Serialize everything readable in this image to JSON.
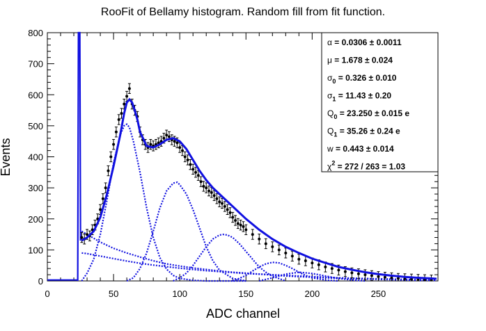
{
  "chart_data": {
    "type": "line",
    "title": "RooFit of Bellamy histogram. Random fill from fit function.",
    "xlabel": "ADC channel",
    "ylabel": "Events",
    "xlim": [
      0,
      295
    ],
    "ylim": [
      0,
      800
    ],
    "x_ticks": [
      0,
      50,
      100,
      150,
      200,
      250
    ],
    "y_ticks": [
      0,
      100,
      200,
      300,
      400,
      500,
      600,
      700,
      800
    ],
    "grid": false,
    "colors": {
      "fit": "#1010e0",
      "data": "#000000",
      "frame": "#000000"
    },
    "stats_box": {
      "placement": "top-right",
      "lines": [
        {
          "symbol": "α",
          "sub": "",
          "rest": " =  0.0306 ± 0.0011"
        },
        {
          "symbol": "μ",
          "sub": "",
          "rest": " =  1.678 ± 0.024"
        },
        {
          "symbol": "σ",
          "sub": "0",
          "rest": " =  0.326 ± 0.010"
        },
        {
          "symbol": "σ",
          "sub": "1",
          "rest": " =  11.43 ± 0.20"
        },
        {
          "symbol": "Q",
          "sub": "0",
          "rest": " =  23.250 ± 0.015 e"
        },
        {
          "symbol": "Q",
          "sub": "1",
          "rest": " =  35.26 ± 0.24 e"
        },
        {
          "symbol": "w",
          "sub": "",
          "rest": " =  0.443 ± 0.014"
        },
        {
          "symbol": "χ",
          "sup": "2",
          "rest": " =  272 / 263 = 1.03"
        }
      ]
    },
    "pedestal_spike": {
      "x": 24,
      "y_max": 800
    },
    "series": [
      {
        "kind": "data_points",
        "x": [
          26,
          28,
          30,
          32,
          34,
          36,
          38,
          40,
          42,
          44,
          46,
          48,
          50,
          52,
          54,
          56,
          58,
          60,
          62,
          64,
          66,
          68,
          70,
          72,
          74,
          76,
          78,
          80,
          82,
          84,
          86,
          88,
          90,
          92,
          94,
          96,
          98,
          100,
          102,
          104,
          106,
          108,
          110,
          112,
          114,
          116,
          118,
          120,
          122,
          124,
          126,
          128,
          130,
          132,
          134,
          136,
          138,
          140,
          142,
          144,
          146,
          148,
          150,
          155,
          160,
          165,
          170,
          175,
          180,
          185,
          190,
          195,
          200,
          205,
          210,
          215,
          220,
          225,
          230,
          235,
          240,
          245,
          250,
          255,
          260,
          265,
          270,
          275,
          280,
          285,
          290
        ],
        "y": [
          140,
          135,
          150,
          145,
          165,
          180,
          200,
          230,
          265,
          300,
          355,
          400,
          440,
          480,
          520,
          540,
          570,
          595,
          620,
          570,
          550,
          530,
          480,
          455,
          440,
          430,
          440,
          435,
          440,
          445,
          450,
          460,
          470,
          465,
          455,
          450,
          445,
          430,
          420,
          400,
          390,
          375,
          360,
          350,
          340,
          320,
          305,
          300,
          290,
          285,
          275,
          265,
          255,
          250,
          240,
          230,
          220,
          205,
          195,
          185,
          180,
          175,
          165,
          150,
          135,
          120,
          110,
          100,
          90,
          80,
          70,
          65,
          58,
          52,
          45,
          40,
          35,
          30,
          26,
          23,
          20,
          17,
          14,
          12,
          10,
          8,
          7,
          6,
          5,
          4,
          3
        ],
        "error": 16
      },
      {
        "kind": "total_fit",
        "x": [
          26,
          30,
          35,
          40,
          45,
          50,
          55,
          58,
          60,
          62,
          64,
          66,
          68,
          70,
          75,
          80,
          85,
          90,
          95,
          100,
          105,
          110,
          115,
          120,
          125,
          130,
          135,
          140,
          145,
          150,
          160,
          170,
          180,
          190,
          200,
          210,
          220,
          230,
          240,
          250,
          260,
          270,
          280,
          290,
          294
        ],
        "y": [
          130,
          140,
          160,
          205,
          280,
          370,
          470,
          540,
          575,
          585,
          575,
          550,
          520,
          480,
          435,
          430,
          440,
          455,
          460,
          450,
          425,
          390,
          355,
          325,
          300,
          280,
          260,
          240,
          220,
          200,
          165,
          135,
          110,
          90,
          72,
          58,
          45,
          36,
          28,
          22,
          17,
          13,
          10,
          8,
          7
        ]
      },
      {
        "kind": "component_1",
        "x": [
          26,
          30,
          35,
          40,
          45,
          50,
          55,
          58,
          60,
          62,
          65,
          70,
          75,
          80,
          85,
          90,
          95,
          100,
          110,
          120,
          130,
          140,
          150
        ],
        "y": [
          0,
          25,
          70,
          150,
          260,
          380,
          470,
          500,
          505,
          495,
          450,
          350,
          235,
          140,
          75,
          38,
          18,
          8,
          2,
          0,
          0,
          0,
          0
        ]
      },
      {
        "kind": "component_2",
        "x": [
          60,
          65,
          70,
          75,
          80,
          85,
          90,
          95,
          98,
          100,
          105,
          110,
          115,
          120,
          125,
          130,
          140,
          150
        ],
        "y": [
          0,
          10,
          40,
          90,
          160,
          235,
          290,
          315,
          318,
          310,
          280,
          230,
          170,
          110,
          65,
          35,
          8,
          0
        ]
      },
      {
        "kind": "component_3",
        "x": [
          95,
          100,
          105,
          110,
          115,
          120,
          125,
          130,
          133,
          136,
          140,
          145,
          150,
          155,
          160,
          165,
          170,
          180
        ],
        "y": [
          0,
          10,
          25,
          50,
          80,
          110,
          135,
          148,
          150,
          148,
          140,
          120,
          95,
          70,
          45,
          28,
          15,
          0
        ]
      },
      {
        "kind": "component_4",
        "x": [
          140,
          145,
          150,
          155,
          160,
          165,
          170,
          175,
          180,
          185,
          190,
          195,
          200,
          210,
          220
        ],
        "y": [
          0,
          8,
          18,
          32,
          45,
          55,
          60,
          58,
          50,
          40,
          28,
          18,
          10,
          3,
          0
        ]
      },
      {
        "kind": "component_5",
        "x": [
          160,
          170,
          180,
          190,
          200,
          210,
          220,
          230,
          240
        ],
        "y": [
          0,
          10,
          22,
          28,
          24,
          16,
          8,
          3,
          0
        ]
      },
      {
        "kind": "background_a",
        "x": [
          26,
          30,
          40,
          50,
          60,
          70,
          80,
          90,
          100,
          110,
          120,
          130,
          140,
          150,
          160,
          170,
          180,
          190,
          200,
          210,
          220,
          230,
          240,
          250,
          260,
          270,
          280,
          290,
          294
        ],
        "y": [
          160,
          150,
          125,
          105,
          90,
          77,
          65,
          55,
          48,
          42,
          37,
          32,
          28,
          25,
          22,
          19,
          16,
          14,
          12,
          10,
          8,
          7,
          6,
          5,
          4,
          3,
          2,
          2,
          2
        ]
      },
      {
        "kind": "background_b",
        "x": [
          26,
          30,
          40,
          50,
          60,
          70,
          80,
          90,
          100,
          110,
          120,
          130,
          140,
          150,
          160,
          170,
          180,
          190,
          200,
          210,
          220,
          230,
          240,
          250,
          260,
          270,
          280,
          290,
          294
        ],
        "y": [
          90,
          88,
          80,
          72,
          64,
          57,
          51,
          46,
          41,
          37,
          33,
          30,
          27,
          24,
          22,
          20,
          18,
          16,
          14,
          12,
          10,
          9,
          8,
          7,
          6,
          5,
          4,
          3,
          3
        ]
      }
    ]
  }
}
